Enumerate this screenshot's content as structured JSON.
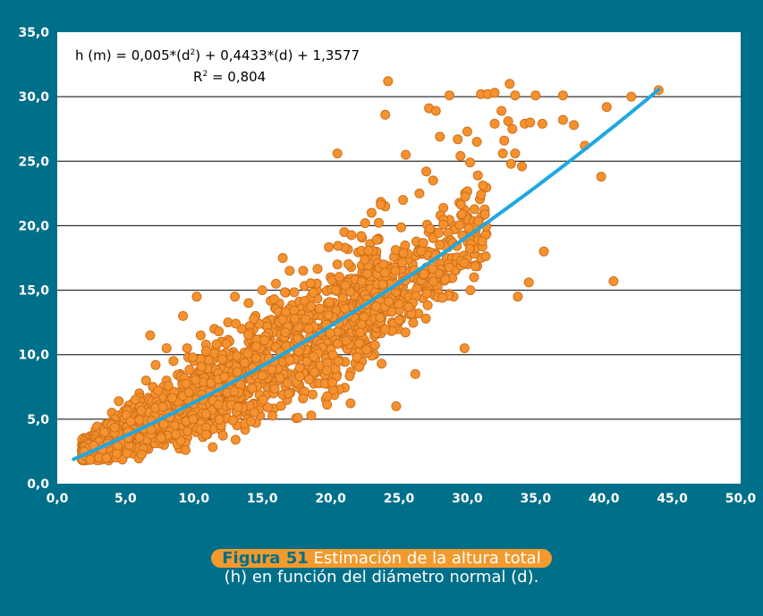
{
  "chart_data": {
    "type": "scatter",
    "xlim": [
      0,
      50
    ],
    "ylim": [
      0,
      35
    ],
    "xticks": [
      "0,0",
      "5,0",
      "10,0",
      "15,0",
      "20,0",
      "25,0",
      "30,0",
      "35,0",
      "40,0",
      "45,0",
      "50,0"
    ],
    "yticks": [
      "0,0",
      "5,0",
      "10,0",
      "15,0",
      "20,0",
      "25,0",
      "30,0",
      "35,0"
    ],
    "grid": "horizontal",
    "marker_color": "#f5922f",
    "marker_edge_color": "#d1701a",
    "trend_color": "#1fa8e0",
    "trend": {
      "type": "polynomial",
      "coefficients": [
        0.005,
        0.4433,
        1.3577
      ],
      "x_range": [
        1.2,
        44.0
      ]
    },
    "equation_text": "h (m) = 0,005*(d",
    "equation_sup": "2",
    "equation_rest": ") + 0,4433*(d) + 1,3577",
    "r2_label": "R",
    "r2_sup": "2",
    "r2_value": " = 0,804",
    "points": [
      [
        2,
        2
      ],
      [
        2.2,
        3.5
      ],
      [
        2.5,
        2.3
      ],
      [
        3,
        3.2
      ],
      [
        3,
        2.5
      ],
      [
        3.5,
        4.5
      ],
      [
        3.5,
        2.8
      ],
      [
        4,
        3.5
      ],
      [
        4,
        5.5
      ],
      [
        4.2,
        2.5
      ],
      [
        4.5,
        4.2
      ],
      [
        4.5,
        6.4
      ],
      [
        5,
        4
      ],
      [
        5,
        5.5
      ],
      [
        5,
        3
      ],
      [
        5.5,
        6.2
      ],
      [
        5.5,
        4.5
      ],
      [
        6,
        5.2
      ],
      [
        6,
        3.2
      ],
      [
        6,
        7
      ],
      [
        6.5,
        6
      ],
      [
        6.5,
        8
      ],
      [
        6.8,
        11.5
      ],
      [
        7,
        5
      ],
      [
        7,
        7.5
      ],
      [
        7.2,
        9.2
      ],
      [
        7.5,
        4.2
      ],
      [
        7.5,
        6.5
      ],
      [
        8,
        8
      ],
      [
        8,
        5.5
      ],
      [
        8,
        10.5
      ],
      [
        8.5,
        7
      ],
      [
        8.5,
        9.5
      ],
      [
        9,
        6
      ],
      [
        9,
        8.5
      ],
      [
        9.2,
        13
      ],
      [
        9.5,
        4
      ],
      [
        9.5,
        10.5
      ],
      [
        10,
        7.5
      ],
      [
        10,
        9.5
      ],
      [
        10,
        5.5
      ],
      [
        10.2,
        14.5
      ],
      [
        10.5,
        8.5
      ],
      [
        10.5,
        11.5
      ],
      [
        11,
        6.5
      ],
      [
        11,
        10
      ],
      [
        11.5,
        12
      ],
      [
        11.5,
        8
      ],
      [
        12,
        9
      ],
      [
        12,
        5
      ],
      [
        12,
        11
      ],
      [
        12.5,
        12.5
      ],
      [
        12.5,
        7.5
      ],
      [
        13,
        10
      ],
      [
        13,
        14.5
      ],
      [
        13,
        6.5
      ],
      [
        13.5,
        9
      ],
      [
        13.5,
        12
      ],
      [
        14,
        11
      ],
      [
        14,
        7
      ],
      [
        14,
        14
      ],
      [
        14.5,
        8.5
      ],
      [
        14.5,
        13
      ],
      [
        15,
        10
      ],
      [
        15,
        6.5
      ],
      [
        15,
        15
      ],
      [
        15.5,
        11.5
      ],
      [
        15.5,
        8
      ],
      [
        16,
        12
      ],
      [
        16,
        9.5
      ],
      [
        16,
        15.5
      ],
      [
        16.5,
        10.5
      ],
      [
        16.5,
        17.5
      ],
      [
        17,
        13
      ],
      [
        17,
        7
      ],
      [
        17,
        16.5
      ],
      [
        17.5,
        11
      ],
      [
        18,
        14
      ],
      [
        18,
        8.5
      ],
      [
        18,
        16.5
      ],
      [
        18.5,
        12
      ],
      [
        19,
        15
      ],
      [
        19,
        9
      ],
      [
        19,
        13.5
      ],
      [
        19.5,
        11
      ],
      [
        20,
        16
      ],
      [
        20,
        13
      ],
      [
        20,
        8.5
      ],
      [
        20.5,
        17
      ],
      [
        20.5,
        25.6
      ],
      [
        21,
        12.5
      ],
      [
        21,
        19.5
      ],
      [
        21.5,
        14
      ],
      [
        22,
        15.5
      ],
      [
        22,
        12
      ],
      [
        22.5,
        17
      ],
      [
        22.5,
        13.5
      ],
      [
        23,
        21
      ],
      [
        23,
        15
      ],
      [
        23.2,
        10
      ],
      [
        23.5,
        19
      ],
      [
        23.5,
        14
      ],
      [
        24,
        21.5
      ],
      [
        24,
        28.6
      ],
      [
        24.2,
        31.2
      ],
      [
        24.5,
        16
      ],
      [
        24.5,
        12.5
      ],
      [
        24.8,
        6
      ],
      [
        25,
        18
      ],
      [
        25,
        14.5
      ],
      [
        25.3,
        22
      ],
      [
        25.5,
        25.5
      ],
      [
        25.5,
        16.5
      ],
      [
        26,
        17
      ],
      [
        26,
        13
      ],
      [
        26.2,
        8.5
      ],
      [
        26.5,
        22.5
      ],
      [
        26.5,
        18.5
      ],
      [
        27,
        24.2
      ],
      [
        27,
        15
      ],
      [
        27.2,
        29.1
      ],
      [
        27.5,
        19.5
      ],
      [
        27.7,
        28.9
      ],
      [
        27.5,
        23.5
      ],
      [
        28,
        26.9
      ],
      [
        28,
        16
      ],
      [
        28.5,
        17.5
      ],
      [
        28.7,
        30.1
      ],
      [
        29,
        20
      ],
      [
        29,
        14.5
      ],
      [
        29.3,
        26.7
      ],
      [
        29.5,
        25.4
      ],
      [
        30,
        27.3
      ],
      [
        30,
        17
      ],
      [
        30.2,
        24.9
      ],
      [
        30.5,
        16
      ],
      [
        30.7,
        26.5
      ],
      [
        31,
        17.5
      ],
      [
        31,
        30.2
      ],
      [
        31.5,
        30.2
      ],
      [
        32,
        27.9
      ],
      [
        32,
        30.3
      ],
      [
        32.5,
        28.9
      ],
      [
        32.6,
        25.6
      ],
      [
        32.7,
        26.6
      ],
      [
        33,
        28.1
      ],
      [
        33.1,
        31
      ],
      [
        33.2,
        24.8
      ],
      [
        33.3,
        27.5
      ],
      [
        33.5,
        30.1
      ],
      [
        33.5,
        25.6
      ],
      [
        34,
        24.6
      ],
      [
        34.2,
        27.9
      ],
      [
        34.6,
        28
      ],
      [
        35,
        30.1
      ],
      [
        35.5,
        27.9
      ],
      [
        35.6,
        18
      ],
      [
        37,
        28.2
      ],
      [
        37,
        30.1
      ],
      [
        37.8,
        27.8
      ],
      [
        38.6,
        26.2
      ],
      [
        39.8,
        23.8
      ],
      [
        40.2,
        29.2
      ],
      [
        40.7,
        15.7
      ],
      [
        42,
        30
      ],
      [
        44,
        30.5
      ],
      [
        34.5,
        15.6
      ],
      [
        33.7,
        14.5
      ],
      [
        30.5,
        18
      ],
      [
        29.8,
        10.5
      ]
    ]
  },
  "caption": {
    "figure_label": "Figura 51",
    "line1": "Estimación de la altura total",
    "line2": "(h) en función del diámetro normal (d)."
  }
}
